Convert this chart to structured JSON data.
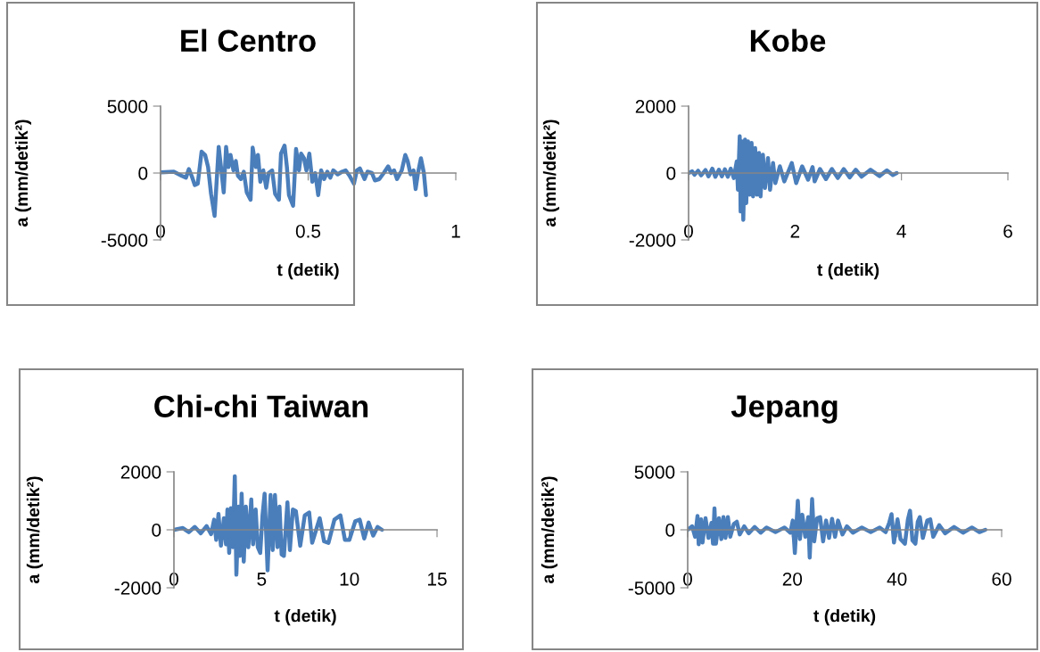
{
  "chart_data": [
    {
      "type": "line",
      "title": "El Centro",
      "xlabel": "t (detik)",
      "ylabel": "a (mm/detik²)",
      "color": "#4a7ebb",
      "xlim": [
        0,
        1
      ],
      "ylim": [
        -5000,
        5000
      ],
      "xticks": [
        0,
        0.5,
        1
      ],
      "yticks": [
        -5000,
        0,
        5000
      ],
      "x": [
        0,
        0.045,
        0.071,
        0.086,
        0.096,
        0.106,
        0.116,
        0.126,
        0.139,
        0.151,
        0.161,
        0.171,
        0.183,
        0.197,
        0.207,
        0.214,
        0.222,
        0.23,
        0.237,
        0.247,
        0.255,
        0.262,
        0.272,
        0.282,
        0.292,
        0.305,
        0.312,
        0.323,
        0.33,
        0.338,
        0.348,
        0.358,
        0.366,
        0.378,
        0.388,
        0.401,
        0.408,
        0.42,
        0.428,
        0.435,
        0.449,
        0.459,
        0.469,
        0.476,
        0.486,
        0.494,
        0.504,
        0.514,
        0.524,
        0.534,
        0.544,
        0.554,
        0.565,
        0.575,
        0.585,
        0.6,
        0.615,
        0.627,
        0.64,
        0.655,
        0.665,
        0.675,
        0.691,
        0.701,
        0.716,
        0.726,
        0.741,
        0.756,
        0.771,
        0.781,
        0.791,
        0.801,
        0.817,
        0.829,
        0.837,
        0.847,
        0.857,
        0.864,
        0.872,
        0.882,
        0.892,
        0.899
      ],
      "values": [
        50,
        100,
        -200,
        -350,
        300,
        -250,
        -900,
        -800,
        1600,
        1350,
        450,
        -1550,
        -3200,
        1950,
        0,
        -1450,
        1950,
        450,
        1350,
        200,
        900,
        -200,
        -450,
        100,
        -1450,
        -2000,
        1900,
        450,
        1350,
        -650,
        200,
        -1100,
        0,
        200,
        -1550,
        -2000,
        1450,
        2050,
        450,
        -1650,
        -2450,
        1800,
        200,
        1450,
        1100,
        200,
        1450,
        -650,
        0,
        -1650,
        200,
        -450,
        100,
        -350,
        200,
        -100,
        100,
        200,
        -200,
        -800,
        200,
        350,
        -450,
        100,
        0,
        -550,
        -450,
        0,
        500,
        0,
        200,
        -450,
        200,
        1350,
        900,
        -100,
        200,
        -1200,
        0,
        1100,
        0,
        -1650
      ]
    },
    {
      "type": "line",
      "title": "Kobe",
      "xlabel": "t (detik)",
      "ylabel": "a (mm/detik²)",
      "color": "#4a7ebb",
      "xlim": [
        0,
        6
      ],
      "ylim": [
        -2000,
        2000
      ],
      "xticks": [
        0,
        2,
        4,
        6
      ],
      "yticks": [
        -2000,
        0,
        2000
      ],
      "x": [
        0,
        0.067,
        0.112,
        0.179,
        0.235,
        0.318,
        0.374,
        0.447,
        0.503,
        0.57,
        0.626,
        0.682,
        0.737,
        0.793,
        0.849,
        0.905,
        0.927,
        0.961,
        0.978,
        1.006,
        1.028,
        1.061,
        1.084,
        1.117,
        1.145,
        1.184,
        1.212,
        1.251,
        1.285,
        1.324,
        1.352,
        1.397,
        1.436,
        1.492,
        1.531,
        1.587,
        1.631,
        1.715,
        1.799,
        1.939,
        2.022,
        2.134,
        2.246,
        2.33,
        2.369,
        2.469,
        2.581,
        2.693,
        2.804,
        2.916,
        3.028,
        3.14,
        3.251,
        3.419,
        3.587,
        3.726,
        3.838,
        3.911
      ],
      "values": [
        0,
        50,
        -50,
        70,
        -70,
        90,
        -100,
        130,
        -110,
        100,
        -100,
        110,
        -110,
        130,
        -150,
        350,
        -500,
        1100,
        -1150,
        950,
        -1400,
        1000,
        -900,
        950,
        -650,
        900,
        -700,
        750,
        -650,
        600,
        -700,
        550,
        -450,
        450,
        -500,
        300,
        -300,
        200,
        -250,
        300,
        -300,
        200,
        -200,
        180,
        -250,
        120,
        -180,
        120,
        -150,
        120,
        -130,
        100,
        -110,
        100,
        -90,
        80,
        -60,
        0
      ]
    },
    {
      "type": "line",
      "title": "Chi-chi Taiwan",
      "xlabel": "t (detik)",
      "ylabel": "a (mm/detik²)",
      "color": "#4a7ebb",
      "xlim": [
        0,
        15
      ],
      "ylim": [
        -2000,
        2000
      ],
      "xticks": [
        0,
        5,
        10,
        15
      ],
      "yticks": [
        -2000,
        0,
        2000
      ],
      "x": [
        0,
        0.51,
        0.85,
        1.19,
        1.53,
        1.86,
        2.12,
        2.29,
        2.41,
        2.54,
        2.68,
        2.85,
        2.97,
        3.05,
        3.15,
        3.25,
        3.36,
        3.47,
        3.56,
        3.69,
        3.76,
        3.86,
        3.98,
        4.1,
        4.24,
        4.41,
        4.51,
        4.66,
        4.78,
        4.92,
        5.05,
        5.17,
        5.34,
        5.51,
        5.63,
        5.76,
        5.9,
        6.02,
        6.14,
        6.27,
        6.47,
        6.61,
        6.78,
        6.95,
        7.2,
        7.46,
        7.71,
        7.88,
        8.31,
        8.56,
        8.81,
        9.15,
        9.49,
        9.75,
        10.0,
        10.34,
        10.59,
        10.85,
        11.1,
        11.36,
        11.61,
        11.86
      ],
      "values": [
        0,
        60,
        -80,
        100,
        -120,
        130,
        -150,
        350,
        -350,
        550,
        -550,
        400,
        -500,
        700,
        -800,
        750,
        -600,
        1850,
        -1550,
        800,
        -900,
        1250,
        -1100,
        800,
        -600,
        1050,
        -500,
        700,
        -600,
        -800,
        500,
        1250,
        -1400,
        1200,
        -700,
        1200,
        -600,
        800,
        -850,
        -900,
        950,
        -700,
        700,
        650,
        -550,
        500,
        600,
        -450,
        400,
        -400,
        -450,
        350,
        500,
        -350,
        -350,
        300,
        350,
        -300,
        250,
        -200,
        100,
        0
      ]
    },
    {
      "type": "line",
      "title": "Jepang",
      "xlabel": "t (detik)",
      "ylabel": "a (mm/detik²)",
      "color": "#4a7ebb",
      "xlim": [
        0,
        60
      ],
      "ylim": [
        -5000,
        5000
      ],
      "xticks": [
        0,
        20,
        40,
        60
      ],
      "yticks": [
        -5000,
        0,
        5000
      ],
      "x": [
        0,
        0.85,
        1.42,
        1.88,
        2.1,
        2.56,
        2.84,
        3.41,
        3.98,
        4.55,
        4.84,
        5.12,
        5.4,
        5.97,
        6.43,
        6.83,
        7.22,
        7.68,
        8.13,
        8.82,
        9.39,
        9.95,
        10.81,
        11.66,
        12.8,
        13.94,
        15.07,
        16.78,
        18.49,
        19.62,
        20.08,
        20.48,
        21.05,
        21.45,
        21.9,
        22.47,
        23.04,
        23.32,
        23.78,
        24.18,
        24.74,
        25.31,
        25.88,
        26.45,
        27.02,
        27.59,
        28.16,
        28.73,
        29.58,
        30.43,
        31.57,
        33.28,
        34.98,
        36.69,
        37.83,
        38.51,
        38.96,
        39.42,
        40.1,
        40.67,
        41.52,
        42.09,
        42.49,
        42.95,
        43.52,
        43.97,
        44.37,
        44.94,
        45.79,
        46.36,
        46.93,
        48.07,
        49.2,
        50.91,
        52.62,
        54.32,
        55.75,
        56.88
      ],
      "values": [
        0,
        300,
        -600,
        1200,
        -1250,
        900,
        -1100,
        1000,
        -700,
        600,
        -1200,
        1850,
        -1200,
        1000,
        -800,
        1100,
        -700,
        1100,
        -600,
        500,
        700,
        -400,
        300,
        -300,
        250,
        -250,
        200,
        -200,
        200,
        -250,
        800,
        -2000,
        2500,
        -800,
        1300,
        -600,
        1100,
        -2400,
        2650,
        -1000,
        1000,
        1100,
        -1000,
        800,
        -700,
        950,
        -600,
        800,
        -400,
        300,
        -250,
        200,
        -200,
        200,
        -200,
        600,
        1350,
        -1100,
        900,
        -800,
        -1200,
        900,
        1650,
        -900,
        -1200,
        700,
        1100,
        -700,
        800,
        900,
        -600,
        400,
        -300,
        250,
        -250,
        200,
        -200,
        0
      ]
    }
  ]
}
